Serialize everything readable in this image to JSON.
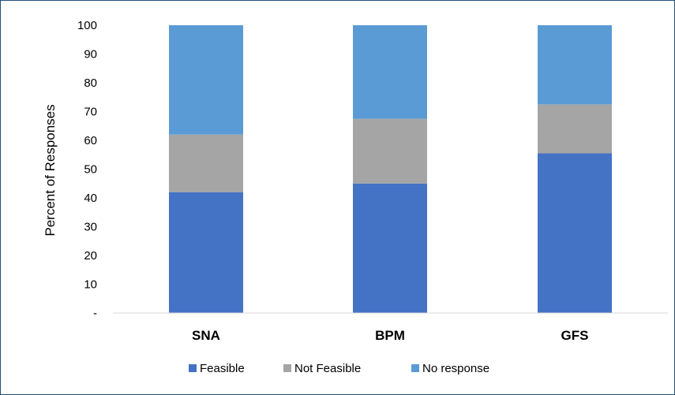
{
  "chart_data": {
    "type": "bar",
    "stacked": true,
    "categories": [
      "SNA",
      "BPM",
      "GFS"
    ],
    "series": [
      {
        "name": "Feasible",
        "values": [
          42,
          45,
          55.5
        ],
        "color": "#4472c4"
      },
      {
        "name": "Not Feasible",
        "values": [
          20,
          22.5,
          17
        ],
        "color": "#a5a5a5"
      },
      {
        "name": "No response",
        "values": [
          38,
          32.5,
          27.5
        ],
        "color": "#5b9bd5"
      }
    ],
    "ylabel": "Percent of Responses",
    "ylim": [
      0,
      100
    ],
    "yticks": [
      "-",
      "10",
      "20",
      "30",
      "40",
      "50",
      "60",
      "70",
      "80",
      "90",
      "100"
    ],
    "grid": false,
    "legend_position": "bottom"
  }
}
